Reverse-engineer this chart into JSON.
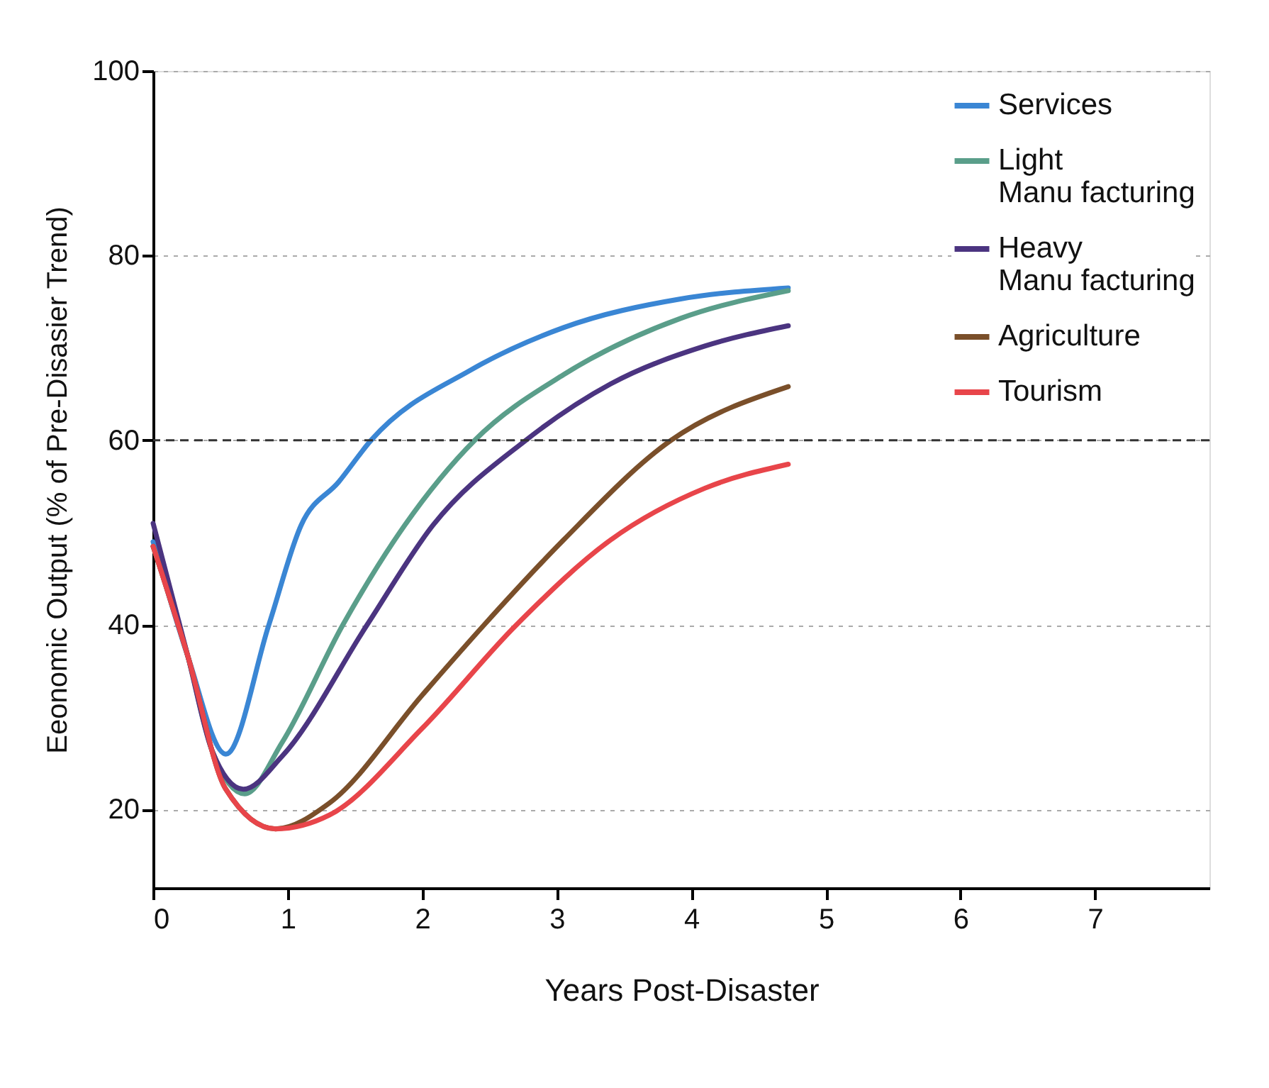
{
  "chart_data": {
    "type": "line",
    "xlabel": "Years Post-Disaster",
    "ylabel": "Eeonomic Output (% of Pre-Disasier Trend)",
    "xlim": [
      0,
      7.85
    ],
    "xticks": [
      0,
      1,
      2,
      3,
      4,
      5,
      6,
      7
    ],
    "ylim": [
      11.5,
      100
    ],
    "yticks": [
      20,
      40,
      60,
      80,
      100
    ],
    "grid": "y",
    "legend": "top right",
    "line_style": "solid",
    "ref_lines": [
      {
        "axis": "y",
        "value": 60,
        "color": "#333333",
        "line_style": "dashed"
      }
    ],
    "series": [
      {
        "name": "Services",
        "color": "#3a86d4",
        "x": [
          0,
          0.26,
          0.54,
          0.86,
          1.1,
          1.38,
          1.62,
          2.36,
          3.05,
          3.92,
          4.72
        ],
        "values": [
          49,
          36.5,
          26.0,
          40,
          50.8,
          55.5,
          60,
          67.6,
          72.2,
          75.3,
          76.5
        ]
      },
      {
        "name": "Light\nManu facturing",
        "color": "#5a9e8a",
        "x": [
          0,
          0.26,
          0.44,
          0.68,
          0.96,
          1.41,
          1.87,
          2.39,
          3.05,
          3.92,
          4.72
        ],
        "values": [
          48.5,
          36.5,
          26.3,
          21.7,
          27.3,
          40,
          50.8,
          60,
          67.1,
          73.2,
          76.2
        ]
      },
      {
        "name": "Heavy\nManu facturing",
        "color": "#4b3480",
        "x": [
          0,
          0.26,
          0.44,
          0.67,
          0.96,
          1.59,
          2.08,
          2.77,
          3.4,
          4.1,
          4.72
        ],
        "values": [
          51,
          36.5,
          26.3,
          22.2,
          25.8,
          40,
          50.8,
          60,
          66.1,
          70.2,
          72.4
        ]
      },
      {
        "name": "Agriculture",
        "color": "#7a4f2a",
        "x": [
          0,
          0.26,
          0.54,
          0.91,
          1.31,
          2.0,
          2.46,
          3.05,
          3.85,
          4.72
        ],
        "values": [
          48.5,
          36.5,
          22.2,
          17.9,
          20.7,
          32.4,
          40,
          49.2,
          60,
          65.8
        ]
      },
      {
        "name": "Tourism",
        "color": "#e8454a",
        "x": [
          0,
          0.26,
          0.54,
          0.91,
          1.31,
          2.0,
          2.7,
          3.4,
          4.1,
          4.72
        ],
        "values": [
          48.5,
          36.5,
          22.2,
          17.9,
          19.4,
          28.8,
          40,
          49.2,
          54.8,
          57.4
        ]
      }
    ]
  }
}
